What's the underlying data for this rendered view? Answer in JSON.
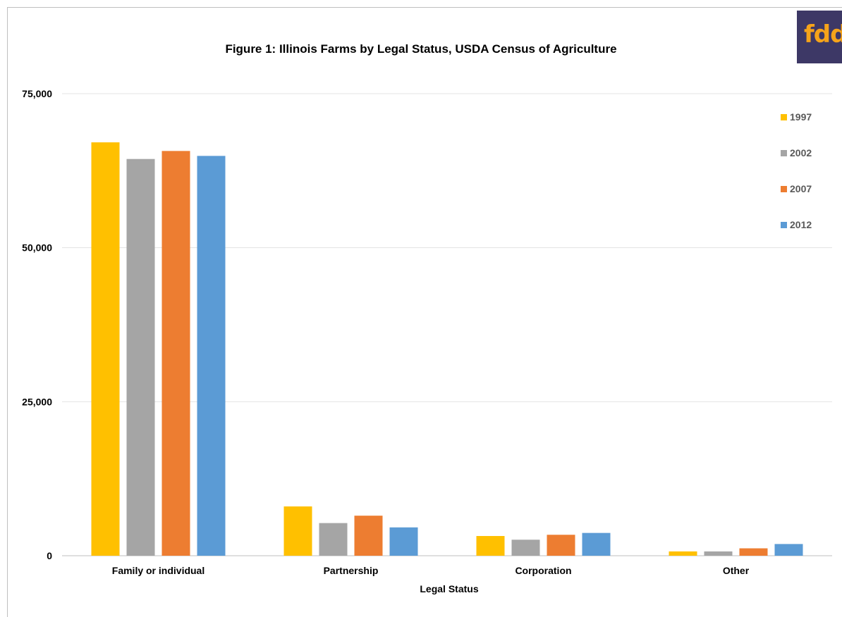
{
  "logo": {
    "text": "fdd",
    "colors": {
      "background": "#3d3866",
      "text": "#f5a31a"
    }
  },
  "chart_data": {
    "type": "bar",
    "title": "Figure 1: Illinois Farms by Legal Status, USDA Census of Agriculture",
    "xlabel": "Legal Status",
    "ylabel": "",
    "ylim": [
      0,
      75000
    ],
    "yticks": [
      0,
      25000,
      50000,
      75000
    ],
    "ytick_labels": [
      "0",
      "25,000",
      "50,000",
      "75,000"
    ],
    "grid": true,
    "legend_position": "right",
    "categories": [
      "Family or individual",
      "Partnership",
      "Corporation",
      "Other"
    ],
    "series": [
      {
        "name": "1997",
        "color": "#ffc000",
        "values": [
          67100,
          8000,
          3200,
          700
        ]
      },
      {
        "name": "2002",
        "color": "#a5a5a5",
        "values": [
          64400,
          5300,
          2600,
          700
        ]
      },
      {
        "name": "2007",
        "color": "#ed7d31",
        "values": [
          65700,
          6500,
          3400,
          1200
        ]
      },
      {
        "name": "2012",
        "color": "#5b9bd5",
        "values": [
          64900,
          4600,
          3700,
          1900
        ]
      }
    ]
  }
}
